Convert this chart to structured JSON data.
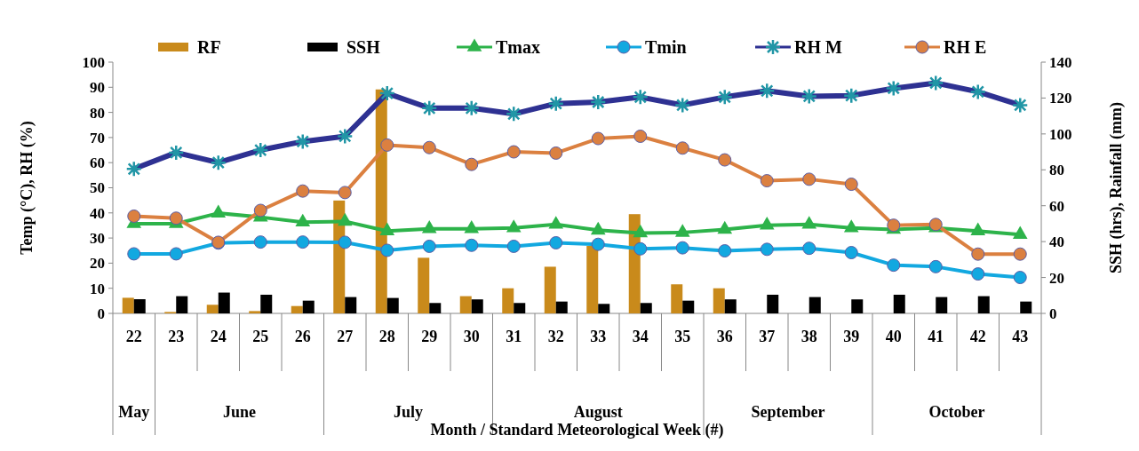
{
  "chart_data": {
    "type": "bar",
    "xlabel": "Month / Standard Meteorological Week (#)",
    "ylabel": "Temp (°C), RH (%)",
    "y2label": "SSH (hrs), Rainfall (mm)",
    "categories": [
      "22",
      "23",
      "24",
      "25",
      "26",
      "27",
      "28",
      "29",
      "30",
      "31",
      "32",
      "33",
      "34",
      "35",
      "36",
      "37",
      "38",
      "39",
      "40",
      "41",
      "42",
      "43"
    ],
    "series": [
      {
        "name": "RF",
        "axis": "y2",
        "color": "#c98a1b",
        "values": [
          8.7,
          0.8,
          4.8,
          1.3,
          4.1,
          62.9,
          124.8,
          31,
          9.6,
          14,
          26,
          37.6,
          55.3,
          16.2,
          14,
          0,
          0,
          0,
          0,
          0,
          0,
          0
        ]
      },
      {
        "name": "SSH",
        "axis": "y2",
        "color": "#000000",
        "values": [
          7.9,
          9.6,
          11.6,
          10.4,
          7.1,
          9.1,
          8.6,
          5.8,
          7.8,
          5.8,
          6.6,
          5.3,
          5.8,
          7.1,
          7.8,
          10.4,
          9.1,
          7.8,
          10.4,
          9.1,
          9.6,
          6.6
        ]
      },
      {
        "name": "Tmax",
        "type": "line",
        "marker": "triangle",
        "color": "#2db34a",
        "values": [
          35.7,
          35.7,
          39.9,
          38.3,
          36.3,
          36.6,
          32.8,
          33.7,
          33.7,
          34,
          35.4,
          33.1,
          32,
          32.2,
          33.4,
          35.1,
          35.4,
          34,
          33.4,
          34,
          32.8,
          31.4
        ]
      },
      {
        "name": "Tmin",
        "type": "line",
        "marker": "circle",
        "color": "#12a8e0",
        "values": [
          23.7,
          23.7,
          28,
          28.4,
          28.4,
          28.3,
          25.1,
          26.7,
          27.1,
          26.7,
          28.1,
          27.5,
          25.7,
          26.1,
          24.9,
          25.5,
          25.9,
          24.2,
          19.2,
          18.6,
          15.7,
          14.3
        ]
      },
      {
        "name": "RH M",
        "type": "line",
        "marker": "cross",
        "color": "#2e3192",
        "values": [
          57.5,
          64,
          60,
          65,
          68.4,
          70.5,
          87.6,
          81.7,
          81.7,
          79.4,
          83.5,
          84.1,
          86.1,
          82.9,
          86.1,
          88.6,
          86.4,
          86.7,
          89.6,
          91.7,
          88.2,
          82.9
        ]
      },
      {
        "name": "RH E",
        "type": "line",
        "marker": "circle",
        "color": "#db8040",
        "values": [
          38.7,
          37.9,
          28.3,
          41,
          48.7,
          48.1,
          67,
          66,
          59.3,
          64.3,
          63.8,
          69.6,
          70.5,
          65.8,
          61.1,
          52.8,
          53.4,
          51.4,
          35.1,
          35.4,
          23.6,
          23.6
        ]
      }
    ],
    "ylim": [
      0,
      100
    ],
    "yticks": [
      0,
      10,
      20,
      30,
      40,
      50,
      60,
      70,
      80,
      90,
      100
    ],
    "y2lim": [
      0,
      140
    ],
    "y2ticks": [
      0,
      20,
      40,
      60,
      80,
      100,
      120,
      140
    ],
    "annotations": [
      "May",
      "June",
      "July",
      "August",
      "September",
      "October"
    ],
    "legend": "top",
    "grid": false
  }
}
